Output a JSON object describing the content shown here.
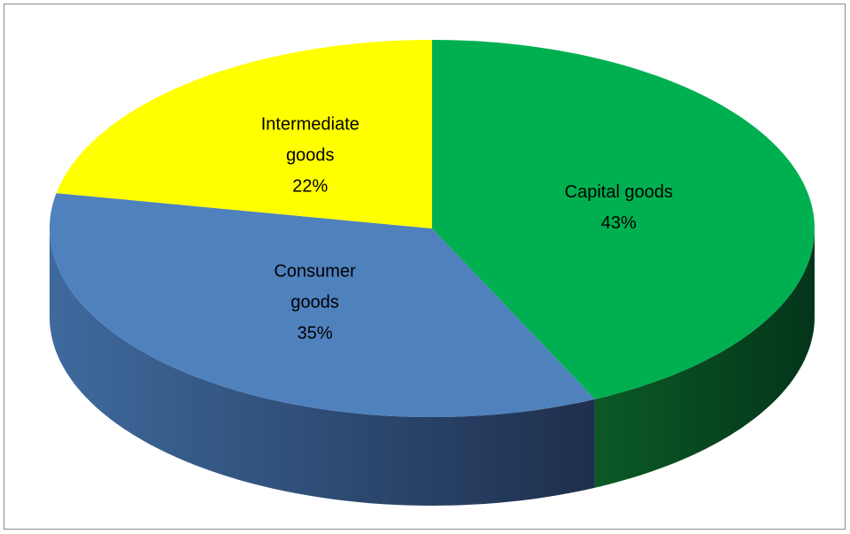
{
  "chart_data": {
    "type": "pie",
    "categories": [
      "Capital goods",
      "Consumer goods",
      "Intermediate goods"
    ],
    "values": [
      43,
      35,
      22
    ],
    "value_labels": [
      "43%",
      "35%",
      "22%"
    ],
    "colors": [
      "#00b050",
      "#4f81bd",
      "#ffff00"
    ],
    "side_colors": [
      [
        "#0b5a26",
        "#04351a"
      ],
      [
        "#3f6a9e",
        "#1e2f4c"
      ],
      [
        "#b3b300",
        "#8a8a00"
      ]
    ]
  }
}
